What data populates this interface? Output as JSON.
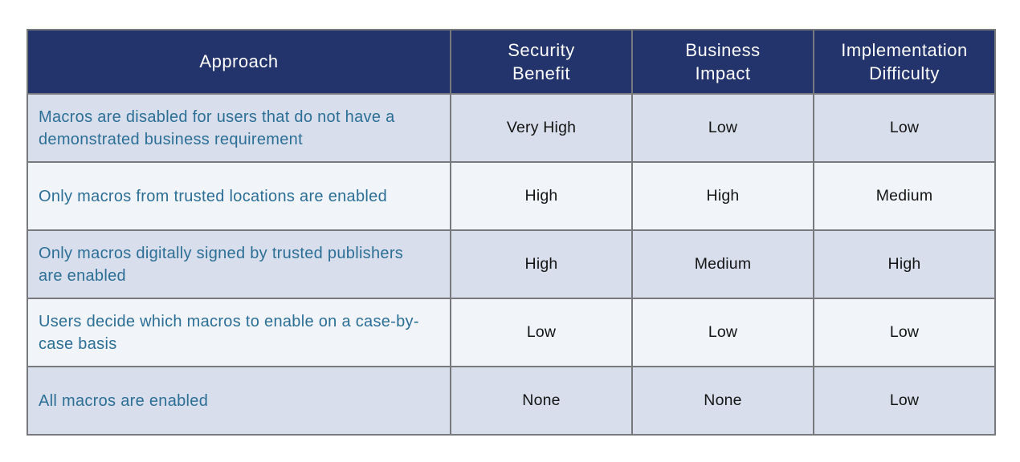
{
  "theme": {
    "page_bg": "#ffffff",
    "header_bg": "#23336b",
    "header_text_color": "#fdfdfd",
    "row_odd_bg": "#d8deeb",
    "row_even_bg": "#f1f4f9",
    "border_color": "#77797c",
    "approach_text_color": "#2c6f96",
    "value_text_color": "#141414"
  },
  "chart_data": {
    "type": "table",
    "columns": [
      "Approach",
      "Security\nBenefit",
      "Business\nImpact",
      "Implementation\nDifficulty"
    ],
    "rows": [
      [
        "Macros are disabled for users that do not have a demonstrated business requirement",
        "Very High",
        "Low",
        "Low"
      ],
      [
        "Only macros from trusted locations are enabled",
        "High",
        "High",
        "Medium"
      ],
      [
        "Only macros digitally signed by trusted publishers are enabled",
        "High",
        "Medium",
        "High"
      ],
      [
        "Users decide which macros to enable on a case-by-case basis",
        "Low",
        "Low",
        "Low"
      ],
      [
        "All macros are enabled",
        "None",
        "None",
        "Low"
      ]
    ]
  }
}
